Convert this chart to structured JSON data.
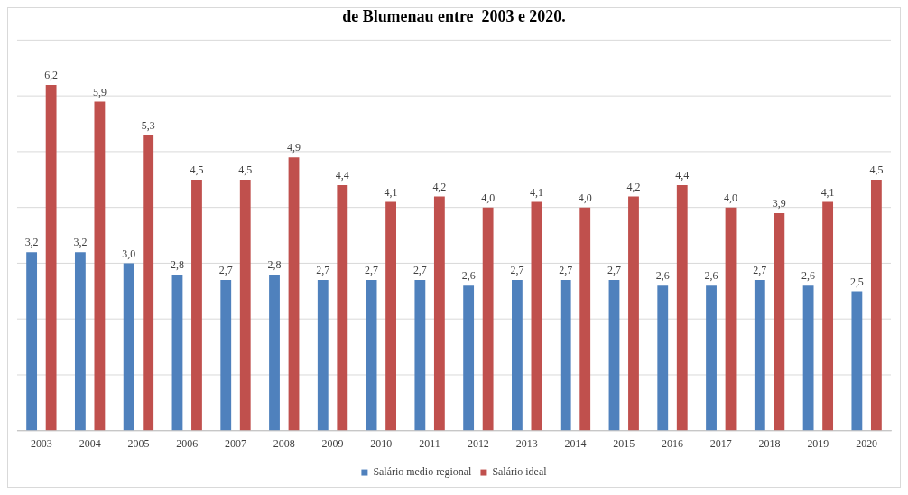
{
  "chart_data": {
    "type": "bar",
    "title": "de Blumenau entre  2003 e 2020.",
    "categories": [
      "2003",
      "2004",
      "2005",
      "2006",
      "2007",
      "2008",
      "2009",
      "2010",
      "2011",
      "2012",
      "2013",
      "2014",
      "2015",
      "2016",
      "2017",
      "2018",
      "2019",
      "2020"
    ],
    "series": [
      {
        "name": "Salário medio regional",
        "color": "#4f81bd",
        "values": [
          3.2,
          3.2,
          3.0,
          2.8,
          2.7,
          2.8,
          2.7,
          2.7,
          2.7,
          2.6,
          2.7,
          2.7,
          2.7,
          2.6,
          2.6,
          2.7,
          2.6,
          2.5
        ],
        "value_labels": [
          "3,2",
          "3,2",
          "3,0",
          "2,8",
          "2,7",
          "2,8",
          "2,7",
          "2,7",
          "2,7",
          "2,6",
          "2,7",
          "2,7",
          "2,7",
          "2,6",
          "2,6",
          "2,7",
          "2,6",
          "2,5"
        ]
      },
      {
        "name": "Salário ideal",
        "color": "#c0504d",
        "values": [
          6.2,
          5.9,
          5.3,
          4.5,
          4.5,
          4.9,
          4.4,
          4.1,
          4.2,
          4.0,
          4.1,
          4.0,
          4.2,
          4.4,
          4.0,
          3.9,
          4.1,
          4.5
        ],
        "value_labels": [
          "6,2",
          "5,9",
          "5,3",
          "4,5",
          "4,5",
          "4,9",
          "4,4",
          "4,1",
          "4,2",
          "4,0",
          "4,1",
          "4,0",
          "4,2",
          "4,4",
          "4,0",
          "3,9",
          "4,1",
          "4,5"
        ]
      }
    ],
    "ylim": [
      0,
      7
    ],
    "yticks": [
      {
        "value": 0,
        "label": null
      },
      {
        "value": 1,
        "label": null
      },
      {
        "value": 2,
        "label": null
      },
      {
        "value": 3,
        "label": null
      },
      {
        "value": 4,
        "label": null
      },
      {
        "value": 5,
        "label": null
      },
      {
        "value": 6,
        "label": null
      },
      {
        "value": 7,
        "label": null
      }
    ],
    "tick_labels": "x",
    "grid": "y",
    "legend": "bottom"
  }
}
